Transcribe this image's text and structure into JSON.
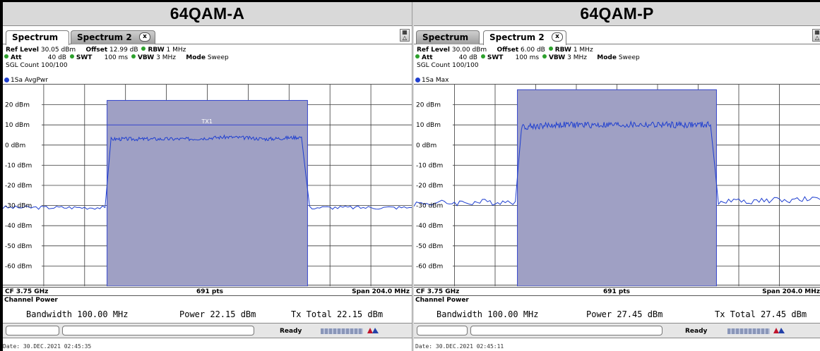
{
  "panels": [
    {
      "title": "64QAM-A",
      "tabs": {
        "tab1": "Spectrum",
        "tab2": "Spectrum 2",
        "close": "x"
      },
      "info": {
        "ref_level_label": "Ref Level",
        "ref_level": "30.05 dBm",
        "offset_label": "Offset",
        "offset": "12.99 dB",
        "rbw_label": "RBW",
        "rbw": "1 MHz",
        "att_label": "Att",
        "att": "40 dB",
        "swt_label": "SWT",
        "swt": "100 ms",
        "vbw_label": "VBW",
        "vbw": "3 MHz",
        "mode_label": "Mode",
        "mode": "Sweep",
        "count": "SGL Count 100/100"
      },
      "trace_label": "1Sa AvgPwr",
      "chart_data": {
        "type": "line",
        "title": "",
        "xlabel": "",
        "ylabel": "",
        "x_unit": "GHz",
        "xlim": [
          3.648,
          3.852
        ],
        "ylim": [
          -70,
          30
        ],
        "yticks": [
          "20 dBm",
          "10 dBm",
          "0 dBm",
          "-10 dBm",
          "-20 dBm",
          "-30 dBm",
          "-40 dBm",
          "-50 dBm",
          "-60 dBm"
        ],
        "ytick_values": [
          20,
          10,
          0,
          -10,
          -20,
          -30,
          -40,
          -50,
          -60
        ],
        "channel_band": {
          "from": 3.7,
          "to": 3.8,
          "top": 22.15
        },
        "marker_line": {
          "y": 10,
          "label": "TX1"
        },
        "series": [
          {
            "x": [
              3.648,
              3.699,
              3.702,
              3.72,
              3.74,
              3.76,
              3.78,
              3.797,
              3.801,
              3.852
            ],
            "values": [
              -31,
              -31,
              3,
              3,
              3,
              4,
              3,
              4,
              -31,
              -31
            ]
          }
        ]
      },
      "status": {
        "cf": "CF 3.75 GHz",
        "pts": "691 pts",
        "span": "Span 204.0 MHz"
      },
      "channel_power": {
        "title": "Channel Power",
        "bandwidth": "Bandwidth 100.00 MHz",
        "power": "Power 22.15 dBm",
        "tx_total": "Tx Total 22.15 dBm"
      },
      "ready": "Ready",
      "date": "Date: 30.DEC.2021  02:45:35"
    },
    {
      "title": "64QAM-P",
      "tabs": {
        "tab1": "Spectrum",
        "tab2": "Spectrum 2",
        "close": "x"
      },
      "info": {
        "ref_level_label": "Ref Level",
        "ref_level": "30.00 dBm",
        "offset_label": "Offset",
        "offset": "6.00 dB",
        "rbw_label": "RBW",
        "rbw": "1 MHz",
        "att_label": "Att",
        "att": "40 dB",
        "swt_label": "SWT",
        "swt": "100 ms",
        "vbw_label": "VBW",
        "vbw": "3 MHz",
        "mode_label": "Mode",
        "mode": "Sweep",
        "count": "SGL Count 100/100"
      },
      "trace_label": "1Sa Max",
      "chart_data": {
        "type": "line",
        "title": "",
        "xlabel": "",
        "ylabel": "",
        "x_unit": "GHz",
        "xlim": [
          3.648,
          3.852
        ],
        "ylim": [
          -70,
          30
        ],
        "yticks": [
          "20 dBm",
          "10 dBm",
          "0 dBm",
          "-10 dBm",
          "-20 dBm",
          "-30 dBm",
          "-40 dBm",
          "-50 dBm",
          "-60 dBm"
        ],
        "ytick_values": [
          20,
          10,
          0,
          -10,
          -20,
          -30,
          -40,
          -50,
          -60
        ],
        "channel_band": {
          "from": 3.7,
          "to": 3.8,
          "top": 27.45
        },
        "marker_line": null,
        "series": [
          {
            "x": [
              3.648,
              3.699,
              3.702,
              3.72,
              3.74,
              3.76,
              3.78,
              3.797,
              3.801,
              3.852
            ],
            "values": [
              -29,
              -28,
              9,
              10,
              10,
              10,
              10,
              10,
              -28,
              -27
            ]
          }
        ]
      },
      "status": {
        "cf": "CF 3.75 GHz",
        "pts": "691 pts",
        "span": "Span 204.0 MHz"
      },
      "channel_power": {
        "title": "Channel Power",
        "bandwidth": "Bandwidth 100.00 MHz",
        "power": "Power 27.45 dBm",
        "tx_total": "Tx Total 27.45 dBm"
      },
      "ready": "Ready",
      "date": "Date: 30.DEC.2021  02:45:11"
    }
  ],
  "colors": {
    "band_fill": "#9fa0c4",
    "trace": "#1f3fd0",
    "grid": "#3a3a3a",
    "header_bg": "#d9d9d9"
  }
}
